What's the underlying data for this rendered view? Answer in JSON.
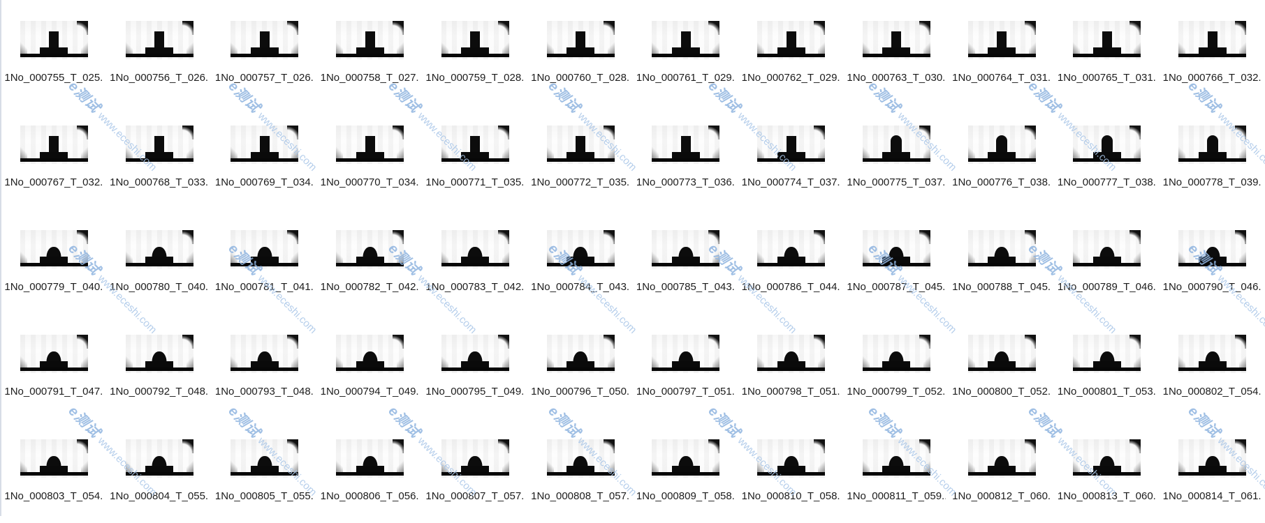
{
  "watermark": {
    "logo": "e测试",
    "url": "www.eceshi.com",
    "logo_color": "#8fb4e0",
    "url_color": "#a9c6e8"
  },
  "grid": {
    "columns": 12,
    "rows": 5,
    "file_count": 60
  },
  "files": [
    {
      "name": "1No_000755_T_025...",
      "shape": "tee"
    },
    {
      "name": "1No_000756_T_026...",
      "shape": "tee"
    },
    {
      "name": "1No_000757_T_026...",
      "shape": "tee"
    },
    {
      "name": "1No_000758_T_027...",
      "shape": "tee"
    },
    {
      "name": "1No_000759_T_028...",
      "shape": "tee"
    },
    {
      "name": "1No_000760_T_028...",
      "shape": "tee"
    },
    {
      "name": "1No_000761_T_029...",
      "shape": "tee"
    },
    {
      "name": "1No_000762_T_029...",
      "shape": "tee"
    },
    {
      "name": "1No_000763_T_030...",
      "shape": "tee"
    },
    {
      "name": "1No_000764_T_031...",
      "shape": "tee"
    },
    {
      "name": "1No_000765_T_031...",
      "shape": "tee"
    },
    {
      "name": "1No_000766_T_032...",
      "shape": "tee"
    },
    {
      "name": "1No_000767_T_032...",
      "shape": "tee"
    },
    {
      "name": "1No_000768_T_033...",
      "shape": "tee"
    },
    {
      "name": "1No_000769_T_034...",
      "shape": "tee"
    },
    {
      "name": "1No_000770_T_034...",
      "shape": "tee"
    },
    {
      "name": "1No_000771_T_035...",
      "shape": "tee"
    },
    {
      "name": "1No_000772_T_035...",
      "shape": "tee"
    },
    {
      "name": "1No_000773_T_036...",
      "shape": "tee"
    },
    {
      "name": "1No_000774_T_037...",
      "shape": "tee"
    },
    {
      "name": "1No_000775_T_037...",
      "shape": "blob"
    },
    {
      "name": "1No_000776_T_038...",
      "shape": "blob"
    },
    {
      "name": "1No_000777_T_038...",
      "shape": "blob"
    },
    {
      "name": "1No_000778_T_039...",
      "shape": "blob"
    },
    {
      "name": "1No_000779_T_040...",
      "shape": "dome"
    },
    {
      "name": "1No_000780_T_040...",
      "shape": "dome"
    },
    {
      "name": "1No_000781_T_041...",
      "shape": "dome"
    },
    {
      "name": "1No_000782_T_042...",
      "shape": "dome"
    },
    {
      "name": "1No_000783_T_042...",
      "shape": "dome"
    },
    {
      "name": "1No_000784_T_043...",
      "shape": "dome"
    },
    {
      "name": "1No_000785_T_043...",
      "shape": "dome"
    },
    {
      "name": "1No_000786_T_044...",
      "shape": "dome"
    },
    {
      "name": "1No_000787_T_045...",
      "shape": "dome"
    },
    {
      "name": "1No_000788_T_045...",
      "shape": "dome"
    },
    {
      "name": "1No_000789_T_046...",
      "shape": "dome"
    },
    {
      "name": "1No_000790_T_046...",
      "shape": "dome"
    },
    {
      "name": "1No_000791_T_047...",
      "shape": "dome"
    },
    {
      "name": "1No_000792_T_048...",
      "shape": "dome"
    },
    {
      "name": "1No_000793_T_048...",
      "shape": "dome"
    },
    {
      "name": "1No_000794_T_049...",
      "shape": "dome"
    },
    {
      "name": "1No_000795_T_049...",
      "shape": "dome"
    },
    {
      "name": "1No_000796_T_050...",
      "shape": "dome"
    },
    {
      "name": "1No_000797_T_051...",
      "shape": "dome"
    },
    {
      "name": "1No_000798_T_051...",
      "shape": "dome"
    },
    {
      "name": "1No_000799_T_052...",
      "shape": "dome"
    },
    {
      "name": "1No_000800_T_052...",
      "shape": "dome"
    },
    {
      "name": "1No_000801_T_053...",
      "shape": "dome"
    },
    {
      "name": "1No_000802_T_054...",
      "shape": "dome"
    },
    {
      "name": "1No_000803_T_054...",
      "shape": "dome"
    },
    {
      "name": "1No_000804_T_055...",
      "shape": "dome"
    },
    {
      "name": "1No_000805_T_055...",
      "shape": "dome"
    },
    {
      "name": "1No_000806_T_056...",
      "shape": "dome"
    },
    {
      "name": "1No_000807_T_057...",
      "shape": "dome"
    },
    {
      "name": "1No_000808_T_057...",
      "shape": "dome"
    },
    {
      "name": "1No_000809_T_058...",
      "shape": "dome"
    },
    {
      "name": "1No_000810_T_058...",
      "shape": "dome"
    },
    {
      "name": "1No_000811_T_059...",
      "shape": "dome"
    },
    {
      "name": "1No_000812_T_060...",
      "shape": "dome"
    },
    {
      "name": "1No_000813_T_060...",
      "shape": "dome"
    },
    {
      "name": "1No_000814_T_061...",
      "shape": "dome"
    }
  ]
}
